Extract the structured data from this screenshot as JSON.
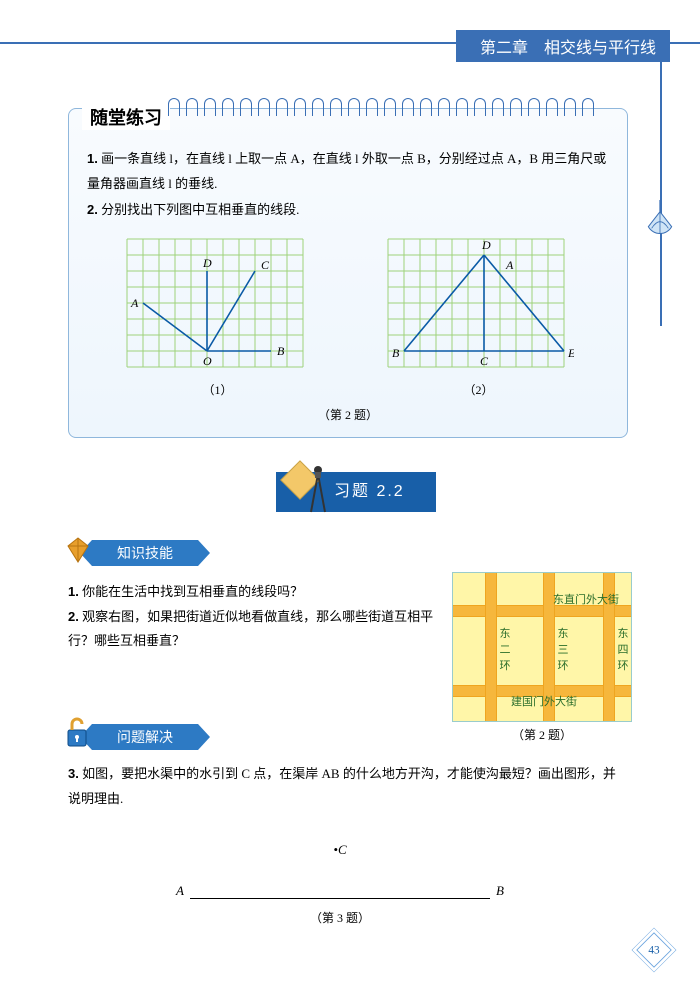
{
  "chapter_header": "第二章　相交线与平行线",
  "practice": {
    "title": "随堂练习",
    "q1_prefix": "1.",
    "q1": " 画一条直线 l，在直线 l 上取一点 A，在直线 l 外取一点 B，分别经过点 A，B 用三角尺或量角器画直线 l 的垂线.",
    "q2_prefix": "2.",
    "q2": " 分别找出下列图中互相垂直的线段.",
    "fig1_num": "（1）",
    "fig2_num": "（2）",
    "fig_caption": "（第 2 题）",
    "grid": {
      "cols": 11,
      "rows": 8,
      "cell": 16,
      "line_color": "#9ed27a",
      "ink": "#0a5aa6",
      "label_color": "#000"
    },
    "fig1": {
      "O": [
        5,
        7
      ],
      "B": [
        9,
        7
      ],
      "A": [
        1,
        4
      ],
      "D": [
        5,
        2
      ],
      "C": [
        8,
        2
      ],
      "labels": {
        "O": "O",
        "A": "A",
        "B": "B",
        "C": "C",
        "D": "D"
      }
    },
    "fig2": {
      "B": [
        1,
        7
      ],
      "C": [
        6,
        7
      ],
      "E": [
        11,
        7
      ],
      "D": [
        6,
        1
      ],
      "A": [
        7,
        2
      ],
      "labels": {
        "A": "A",
        "B": "B",
        "C": "C",
        "D": "D",
        "E": "E"
      }
    }
  },
  "exercise_banner": "习题 2.2",
  "section_knowledge": "知识技能",
  "section_problem": "问题解决",
  "q_list": {
    "q1_prefix": "1.",
    "q1": " 你能在生活中找到互相垂直的线段吗？",
    "q2_prefix": "2.",
    "q2": " 观察右图，如果把街道近似地看做直线，那么哪些街道互相平行？哪些互相垂直？",
    "q3_prefix": "3.",
    "q3": " 如图，要把水渠中的水引到 C 点，在渠岸 AB 的什么地方开沟，才能使沟最短？画出图形，并说明理由.",
    "q3_pointC": "C",
    "q3_A": "A",
    "q3_B": "B",
    "q3_caption": "（第 3 题）"
  },
  "map": {
    "caption": "（第 2 题）",
    "bg": "#fff6a8",
    "road": "#f6b73c",
    "road_border": "#efa51f",
    "text": "#2a6d2a",
    "labels": {
      "top": "东直门外大街",
      "bottom": "建国门外大街",
      "v1a": "东",
      "v1b": "二",
      "v1c": "环",
      "v2a": "东",
      "v2b": "三",
      "v2c": "环",
      "v3a": "东",
      "v3b": "四",
      "v3c": "环"
    }
  },
  "page_number": "43",
  "colors": {
    "banner_bg": "#185fa8",
    "header_bg": "#3a6fb5",
    "tag_bg": "#2d7ac4",
    "tag_text": "#ffffff",
    "diamond_border": "#6aa4de",
    "fish_color": "#6aa4de"
  }
}
